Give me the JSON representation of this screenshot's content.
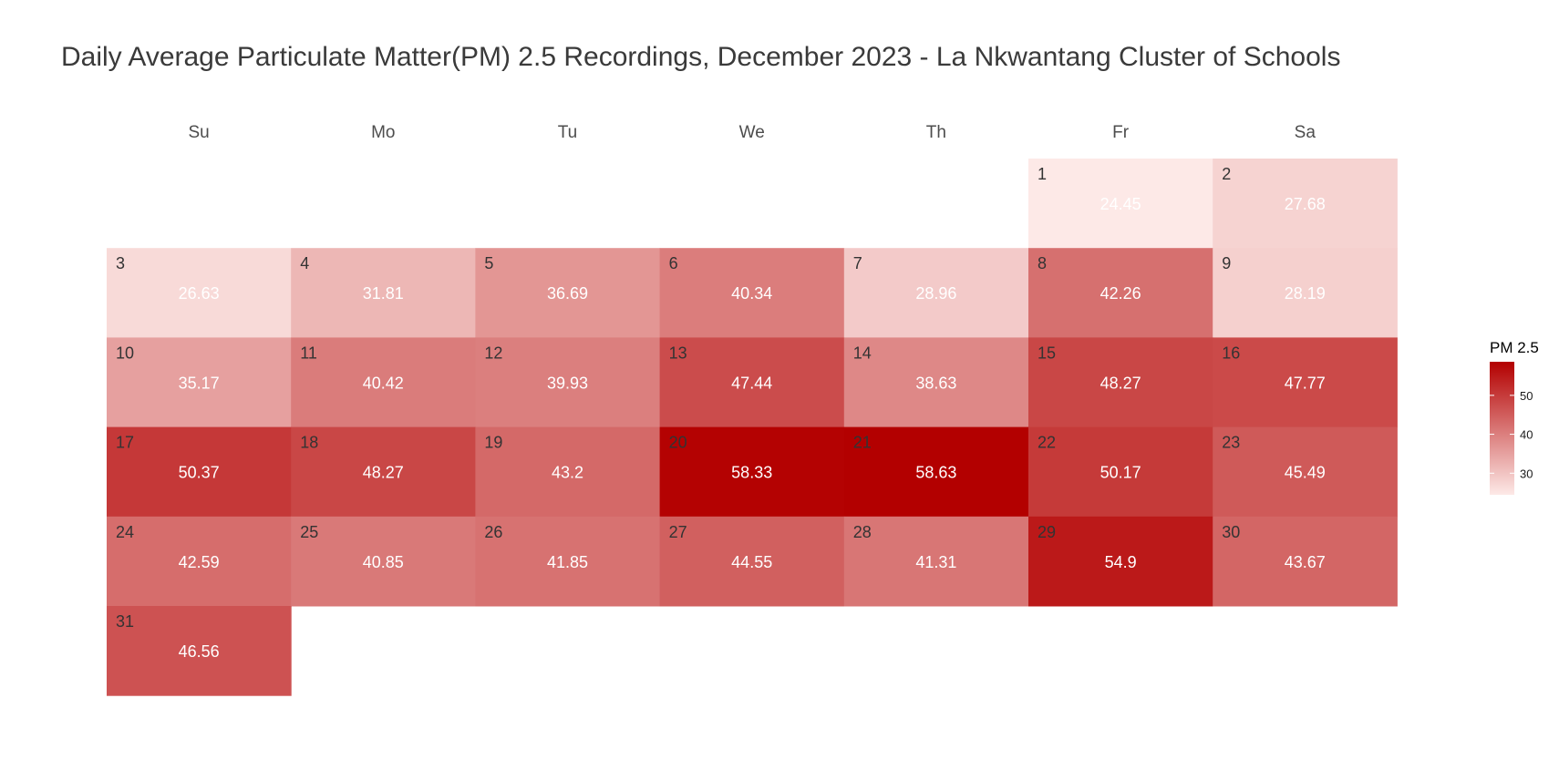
{
  "chart_data": {
    "type": "heatmap",
    "title": "Daily Average Particulate Matter(PM) 2.5 Recordings, December 2023 - La Nkwantang Cluster of Schools",
    "weekdays": [
      "Su",
      "Mo",
      "Tu",
      "We",
      "Th",
      "Fr",
      "Sa"
    ],
    "first_weekday_index": 5,
    "days": [
      1,
      2,
      3,
      4,
      5,
      6,
      7,
      8,
      9,
      10,
      11,
      12,
      13,
      14,
      15,
      16,
      17,
      18,
      19,
      20,
      21,
      22,
      23,
      24,
      25,
      26,
      27,
      28,
      29,
      30,
      31
    ],
    "values": [
      24.45,
      27.68,
      26.63,
      31.81,
      36.69,
      40.34,
      28.96,
      42.26,
      28.19,
      35.17,
      40.42,
      39.93,
      47.44,
      38.63,
      48.27,
      47.77,
      50.37,
      48.27,
      43.2,
      58.33,
      58.63,
      50.17,
      45.49,
      42.59,
      40.85,
      41.85,
      44.55,
      41.31,
      54.9,
      43.67,
      46.56
    ],
    "value_labels": [
      "24.45",
      "27.68",
      "26.63",
      "31.81",
      "36.69",
      "40.34",
      "28.96",
      "42.26",
      "28.19",
      "35.17",
      "40.42",
      "39.93",
      "47.44",
      "38.63",
      "48.27",
      "47.77",
      "50.37",
      "48.27",
      "43.2",
      "58.33",
      "58.63",
      "50.17",
      "45.49",
      "42.59",
      "40.85",
      "41.85",
      "44.55",
      "41.31",
      "54.9",
      "43.67",
      "46.56"
    ],
    "color_scale": {
      "low": "#fde9e7",
      "high": "#b30000",
      "domain": [
        24.45,
        58.63
      ]
    },
    "legend": {
      "title": "PM 2.5",
      "ticks": [
        30,
        40,
        50
      ],
      "tick_labels": [
        "30",
        "40",
        "50"
      ],
      "position": "right"
    }
  }
}
